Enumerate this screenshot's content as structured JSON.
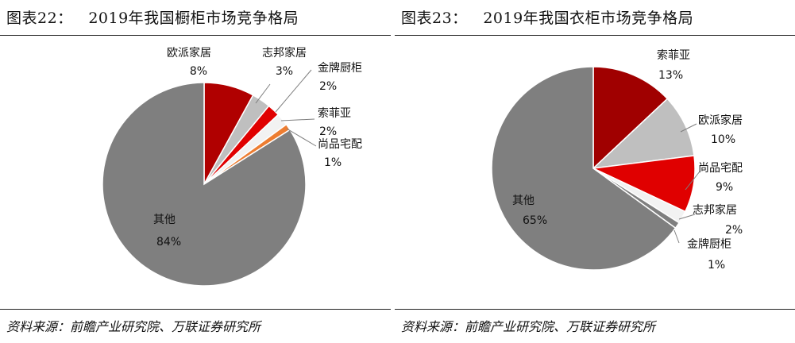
{
  "chart_data": [
    {
      "type": "pie",
      "figure_label": "图表22：",
      "title": "2019年我国橱柜市场竞争格局",
      "source": "资料来源：前瞻产业研究院、万联证券研究所",
      "slices": [
        {
          "label": "欧派家居",
          "value": 8,
          "value_label": "8%",
          "color": "#b00000"
        },
        {
          "label": "志邦家居",
          "value": 3,
          "value_label": "3%",
          "color": "#bfbfbf"
        },
        {
          "label": "金牌厨柜",
          "value": 2,
          "value_label": "2%",
          "color": "#e00000"
        },
        {
          "label": "索菲亚",
          "value": 2,
          "value_label": "2%",
          "color": "#f2f2f2"
        },
        {
          "label": "尚品宅配",
          "value": 1,
          "value_label": "1%",
          "color": "#ed7d31"
        },
        {
          "label": "其他",
          "value": 84,
          "value_label": "84%",
          "color": "#7f7f7f"
        }
      ]
    },
    {
      "type": "pie",
      "figure_label": "图表23：",
      "title": "2019年我国衣柜市场竞争格局",
      "source": "资料来源：前瞻产业研究院、万联证券研究所",
      "slices": [
        {
          "label": "索菲亚",
          "value": 13,
          "value_label": "13%",
          "color": "#a00000"
        },
        {
          "label": "欧派家居",
          "value": 10,
          "value_label": "10%",
          "color": "#bfbfbf"
        },
        {
          "label": "尚品宅配",
          "value": 9,
          "value_label": "9%",
          "color": "#e00000"
        },
        {
          "label": "志邦家居",
          "value": 2,
          "value_label": "2%",
          "color": "#f2f2f2"
        },
        {
          "label": "金牌厨柜",
          "value": 1,
          "value_label": "1%",
          "color": "#7f7f7f"
        },
        {
          "label": "其他",
          "value": 65,
          "value_label": "65%",
          "color": "#7f7f7f"
        }
      ]
    }
  ]
}
